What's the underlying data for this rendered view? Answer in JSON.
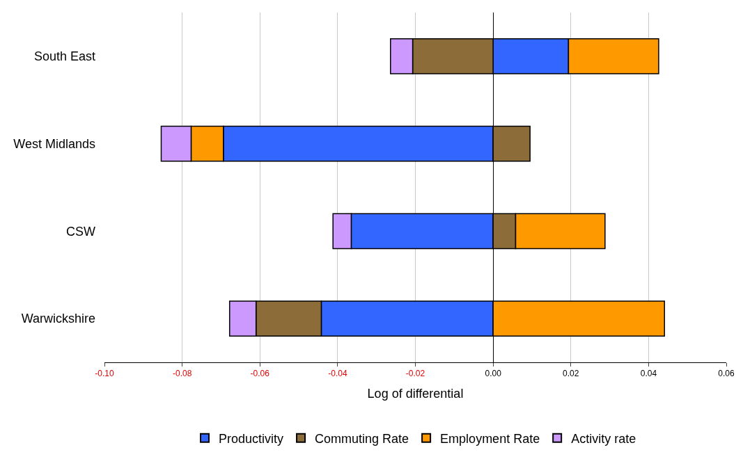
{
  "chart_data": {
    "type": "bar",
    "orientation": "horizontal",
    "stacked": true,
    "categories": [
      "South East",
      "West Midlands",
      "CSW",
      "Warwickshire"
    ],
    "series": [
      {
        "name": "Productivity",
        "color": "#3366ff",
        "values": [
          0.0194,
          -0.0694,
          -0.0365,
          -0.0442
        ]
      },
      {
        "name": "Commuting Rate",
        "color": "#8c6d3a",
        "values": [
          -0.0207,
          0.0095,
          0.0058,
          -0.0168
        ]
      },
      {
        "name": "Employment Rate",
        "color": "#ff9900",
        "values": [
          0.0232,
          -0.0083,
          0.023,
          0.0441
        ]
      },
      {
        "name": "Activity rate",
        "color": "#cc99ff",
        "values": [
          -0.0057,
          -0.0077,
          -0.0047,
          -0.0068
        ]
      }
    ],
    "xlabel": "Log of differential",
    "xlim": [
      -0.1,
      0.06
    ],
    "xticks": [
      {
        "value": -0.1,
        "label": "-0.10"
      },
      {
        "value": -0.08,
        "label": "-0.08"
      },
      {
        "value": -0.06,
        "label": "-0.06"
      },
      {
        "value": -0.04,
        "label": "-0.04"
      },
      {
        "value": -0.02,
        "label": "-0.02"
      },
      {
        "value": 0,
        "label": "0.00"
      },
      {
        "value": 0.02,
        "label": "0.02"
      },
      {
        "value": 0.04,
        "label": "0.04"
      },
      {
        "value": 0.06,
        "label": "0.06"
      }
    ],
    "grid": "x",
    "legend": "bottom"
  }
}
